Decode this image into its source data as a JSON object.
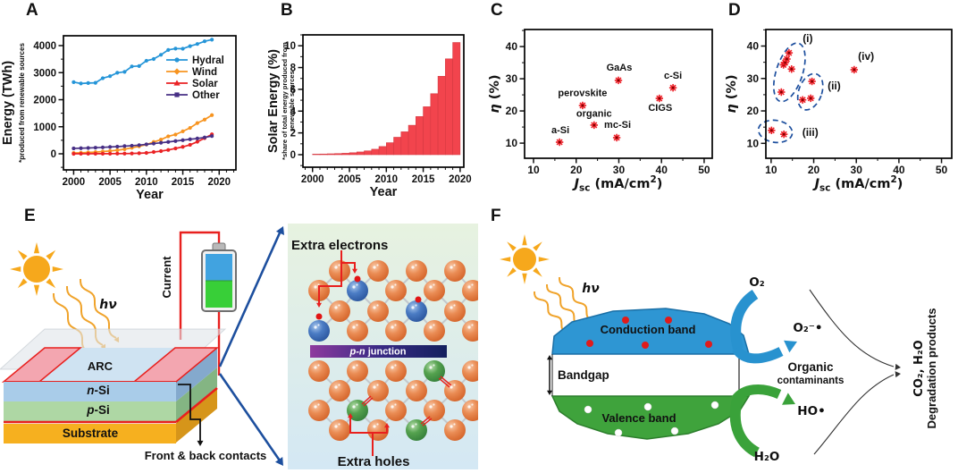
{
  "panel_labels": [
    "A",
    "B",
    "C",
    "D",
    "E",
    "F"
  ],
  "chart_data": [
    {
      "id": "A",
      "type": "line",
      "xlabel": "Year",
      "ylabel": "Energy (TWh)",
      "ylabel_note": "*produced from renewable sources",
      "x": [
        2000,
        2001,
        2002,
        2003,
        2004,
        2005,
        2006,
        2007,
        2008,
        2009,
        2010,
        2011,
        2012,
        2013,
        2014,
        2015,
        2016,
        2017,
        2018,
        2019
      ],
      "xlim": [
        1998.6,
        2022.3
      ],
      "ylim": [
        -595,
        4364
      ],
      "xticks": [
        2000,
        2005,
        2010,
        2015,
        2020
      ],
      "yticks": [
        0,
        1000,
        2000,
        3000,
        4000
      ],
      "xminor": 1,
      "yminor": 500,
      "series": [
        {
          "name": "Hydral",
          "color": "#2595d8",
          "marker": "circle",
          "values": [
            2650,
            2600,
            2615,
            2625,
            2795,
            2870,
            2995,
            3030,
            3230,
            3245,
            3440,
            3505,
            3660,
            3840,
            3890,
            3885,
            3980,
            4060,
            4160,
            4220
          ]
        },
        {
          "name": "Wind",
          "color": "#f79420",
          "marker": "diamond",
          "values": [
            31,
            38,
            52,
            63,
            85,
            104,
            133,
            170,
            221,
            276,
            342,
            437,
            524,
            646,
            712,
            831,
            957,
            1136,
            1265,
            1430
          ]
        },
        {
          "name": "Solar",
          "color": "#ea2325",
          "marker": "triangle",
          "values": [
            1,
            2,
            2,
            3,
            4,
            5,
            7,
            9,
            12,
            21,
            34,
            65,
            100,
            142,
            198,
            256,
            332,
            445,
            580,
            720
          ]
        },
        {
          "name": "Other",
          "color": "#472f85",
          "marker": "square",
          "values": [
            200,
            207,
            215,
            226,
            238,
            252,
            265,
            284,
            300,
            320,
            350,
            378,
            408,
            438,
            472,
            505,
            538,
            565,
            605,
            655
          ]
        }
      ]
    },
    {
      "id": "B",
      "type": "bar",
      "xlabel": "Year",
      "ylabel": "Solar Energy (%)",
      "ylabel_note_lines": [
        "*share of total energy produced from",
        "renewable sources"
      ],
      "bar_color": "#f2444d",
      "bar_edge": "#d53a42",
      "x": [
        2000,
        2001,
        2002,
        2003,
        2004,
        2005,
        2006,
        2007,
        2008,
        2009,
        2010,
        2011,
        2012,
        2013,
        2014,
        2015,
        2016,
        2017,
        2018,
        2019
      ],
      "values": [
        0.05,
        0.06,
        0.08,
        0.1,
        0.13,
        0.18,
        0.25,
        0.35,
        0.5,
        0.75,
        1.1,
        1.6,
        2.1,
        2.7,
        3.5,
        4.4,
        5.6,
        7.2,
        8.8,
        10.3
      ],
      "xlim": [
        1998.7,
        2020.5
      ],
      "ylim": [
        -1.15,
        11.0
      ],
      "xticks": [
        2000,
        2005,
        2010,
        2015,
        2020
      ],
      "yticks": [
        0,
        2,
        4,
        6,
        8,
        10
      ],
      "xminor": 1,
      "yminor": 1
    },
    {
      "id": "C",
      "type": "scatter",
      "marker_color": "#ec1c24",
      "xlabel_parts": [
        {
          "t": "J",
          "s": "i"
        },
        {
          "t": "sc",
          "s": "sub"
        },
        {
          "t": " (mA/cm",
          "s": ""
        },
        {
          "t": "2",
          "s": "sup"
        },
        {
          "t": ")",
          "s": ""
        }
      ],
      "ylabel_parts": [
        {
          "t": "η",
          "s": "i"
        },
        {
          "t": " (%)",
          "s": ""
        }
      ],
      "xlim": [
        7.9,
        51.9
      ],
      "ylim": [
        5.3,
        45.3
      ],
      "xticks": [
        10,
        20,
        30,
        40,
        50
      ],
      "yticks": [
        10,
        20,
        30,
        40
      ],
      "xminor": 5,
      "yminor": 5,
      "points": [
        {
          "x": 16.1,
          "y": 10.3,
          "label": "a-Si",
          "lx": 16.3,
          "ly": 13.1
        },
        {
          "x": 21.5,
          "y": 21.7,
          "label": "perovskite",
          "lx": 21.5,
          "ly": 24.6
        },
        {
          "x": 24.2,
          "y": 15.6,
          "label": "organic",
          "lx": 24.2,
          "ly": 18.2
        },
        {
          "x": 29.9,
          "y": 29.5,
          "label": "GaAs",
          "lx": 30.1,
          "ly": 32.5
        },
        {
          "x": 29.5,
          "y": 11.7,
          "label": "mc-Si",
          "lx": 29.7,
          "ly": 14.7
        },
        {
          "x": 39.5,
          "y": 23.9,
          "label": "CIGS",
          "lx": 39.7,
          "ly": 20.0
        },
        {
          "x": 42.7,
          "y": 27.2,
          "label": "c-Si",
          "lx": 42.7,
          "ly": 30.0
        }
      ]
    },
    {
      "id": "D",
      "type": "scatter",
      "marker_color": "#ec1c24",
      "ellipse_color": "#1d4f9e",
      "xlabel_parts": [
        {
          "t": "J",
          "s": "i"
        },
        {
          "t": "sc",
          "s": "sub"
        },
        {
          "t": " (mA/cm",
          "s": ""
        },
        {
          "t": "2",
          "s": "sup"
        },
        {
          "t": ")",
          "s": ""
        }
      ],
      "ylabel_parts": [
        {
          "t": "η",
          "s": "i"
        },
        {
          "t": " (%)",
          "s": ""
        }
      ],
      "xlim": [
        8.77,
        52.4
      ],
      "ylim": [
        5.4,
        45.1
      ],
      "xticks": [
        10,
        20,
        30,
        40,
        50
      ],
      "yticks": [
        10,
        20,
        30,
        40
      ],
      "xminor": 5,
      "yminor": 5,
      "points": [
        {
          "x": 12.9,
          "y": 34.2
        },
        {
          "x": 13.3,
          "y": 34.9
        },
        {
          "x": 13.7,
          "y": 36.0
        },
        {
          "x": 14.2,
          "y": 37.9
        },
        {
          "x": 14.8,
          "y": 32.9
        },
        {
          "x": 12.4,
          "y": 25.8
        },
        {
          "x": 17.4,
          "y": 23.4
        },
        {
          "x": 19.3,
          "y": 23.9
        },
        {
          "x": 19.6,
          "y": 29.1
        },
        {
          "x": 10.1,
          "y": 14.0
        },
        {
          "x": 13.0,
          "y": 12.8
        },
        {
          "x": 29.5,
          "y": 32.7
        }
      ],
      "groups": [
        {
          "label": "(i)",
          "lx": 18.6,
          "ly": 41.3,
          "cx": 14.3,
          "cy": 31.9,
          "rx": 3.1,
          "ry": 9.4,
          "rot": 18
        },
        {
          "label": "(ii)",
          "lx": 24.8,
          "ly": 26.6,
          "cx": 19.2,
          "cy": 25.9,
          "rx": 2.7,
          "ry": 5.8,
          "rot": 20
        },
        {
          "label": "(iii)",
          "lx": 19.2,
          "ly": 12.3,
          "cx": 11.0,
          "cy": 13.7,
          "rx": 4.0,
          "ry": 3.4,
          "rot": 8
        },
        {
          "label": "(iv)",
          "lx": 32.3,
          "ly": 35.7
        }
      ]
    }
  ],
  "diagram_e": {
    "hv": "hν",
    "current": "Current",
    "arc": "ARC",
    "n_si": "n-Si",
    "p_si": "p-Si",
    "substrate": "Substrate",
    "contacts": "Front & back contacts",
    "extra_electrons": "Extra electrons",
    "junction_italic": "p-n",
    "junction_rest": " junction",
    "extra_holes": "Extra holes"
  },
  "diagram_f": {
    "hv": "hν",
    "conduction": "Conduction band",
    "bandgap": "Bandgap",
    "valence": "Valence band",
    "o2": "O₂",
    "superoxide": "O₂⁻•",
    "organic": "Organic",
    "contaminants": "contaminants",
    "hydroxyl": "HO•",
    "h2o": "H₂O",
    "products_1": "CO₂, H₂O",
    "products_2": "Degradation products"
  },
  "colors": {
    "sun": "#f6a81c",
    "photon": "#f0a32a",
    "wire_red": "#e8201e",
    "zoom_arrow": "#1d4f9e",
    "conduction_blue": "#2e96d3",
    "valence_green": "#3fa33c",
    "ribbon_blue": "#2892cf",
    "ribbon_green": "#3aa23a",
    "n_si_face": "#a9cce9",
    "p_si_face": "#aed7a4",
    "substrate_face": "#f6b01f",
    "arc_face": "#cfe3f2",
    "contact_pink": "#f3a6b0"
  }
}
